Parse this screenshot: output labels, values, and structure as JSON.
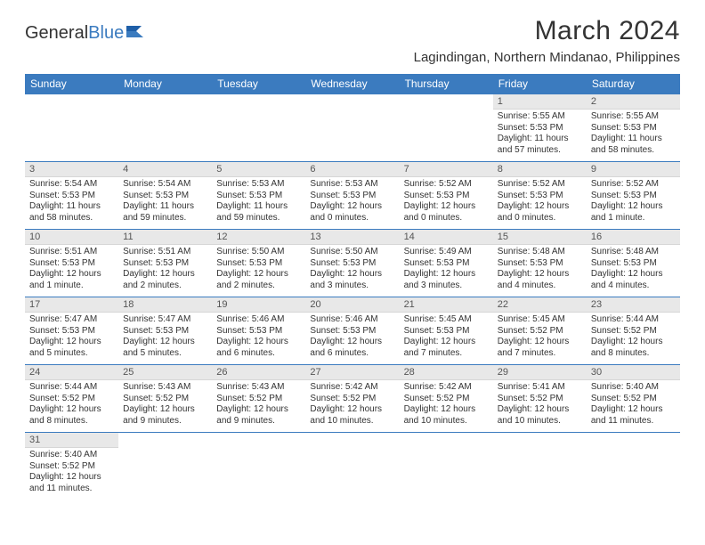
{
  "brand": {
    "part1": "General",
    "part2": "Blue"
  },
  "title": "March 2024",
  "location": "Lagindingan, Northern Mindanao, Philippines",
  "colors": {
    "header_bg": "#3b7bbf",
    "header_text": "#ffffff",
    "daynum_bg": "#e8e8e8",
    "border": "#3b7bbf",
    "text": "#333333"
  },
  "day_headers": [
    "Sunday",
    "Monday",
    "Tuesday",
    "Wednesday",
    "Thursday",
    "Friday",
    "Saturday"
  ],
  "weeks": [
    [
      {
        "n": "",
        "sr": "",
        "ss": "",
        "dl": ""
      },
      {
        "n": "",
        "sr": "",
        "ss": "",
        "dl": ""
      },
      {
        "n": "",
        "sr": "",
        "ss": "",
        "dl": ""
      },
      {
        "n": "",
        "sr": "",
        "ss": "",
        "dl": ""
      },
      {
        "n": "",
        "sr": "",
        "ss": "",
        "dl": ""
      },
      {
        "n": "1",
        "sr": "Sunrise: 5:55 AM",
        "ss": "Sunset: 5:53 PM",
        "dl": "Daylight: 11 hours and 57 minutes."
      },
      {
        "n": "2",
        "sr": "Sunrise: 5:55 AM",
        "ss": "Sunset: 5:53 PM",
        "dl": "Daylight: 11 hours and 58 minutes."
      }
    ],
    [
      {
        "n": "3",
        "sr": "Sunrise: 5:54 AM",
        "ss": "Sunset: 5:53 PM",
        "dl": "Daylight: 11 hours and 58 minutes."
      },
      {
        "n": "4",
        "sr": "Sunrise: 5:54 AM",
        "ss": "Sunset: 5:53 PM",
        "dl": "Daylight: 11 hours and 59 minutes."
      },
      {
        "n": "5",
        "sr": "Sunrise: 5:53 AM",
        "ss": "Sunset: 5:53 PM",
        "dl": "Daylight: 11 hours and 59 minutes."
      },
      {
        "n": "6",
        "sr": "Sunrise: 5:53 AM",
        "ss": "Sunset: 5:53 PM",
        "dl": "Daylight: 12 hours and 0 minutes."
      },
      {
        "n": "7",
        "sr": "Sunrise: 5:52 AM",
        "ss": "Sunset: 5:53 PM",
        "dl": "Daylight: 12 hours and 0 minutes."
      },
      {
        "n": "8",
        "sr": "Sunrise: 5:52 AM",
        "ss": "Sunset: 5:53 PM",
        "dl": "Daylight: 12 hours and 0 minutes."
      },
      {
        "n": "9",
        "sr": "Sunrise: 5:52 AM",
        "ss": "Sunset: 5:53 PM",
        "dl": "Daylight: 12 hours and 1 minute."
      }
    ],
    [
      {
        "n": "10",
        "sr": "Sunrise: 5:51 AM",
        "ss": "Sunset: 5:53 PM",
        "dl": "Daylight: 12 hours and 1 minute."
      },
      {
        "n": "11",
        "sr": "Sunrise: 5:51 AM",
        "ss": "Sunset: 5:53 PM",
        "dl": "Daylight: 12 hours and 2 minutes."
      },
      {
        "n": "12",
        "sr": "Sunrise: 5:50 AM",
        "ss": "Sunset: 5:53 PM",
        "dl": "Daylight: 12 hours and 2 minutes."
      },
      {
        "n": "13",
        "sr": "Sunrise: 5:50 AM",
        "ss": "Sunset: 5:53 PM",
        "dl": "Daylight: 12 hours and 3 minutes."
      },
      {
        "n": "14",
        "sr": "Sunrise: 5:49 AM",
        "ss": "Sunset: 5:53 PM",
        "dl": "Daylight: 12 hours and 3 minutes."
      },
      {
        "n": "15",
        "sr": "Sunrise: 5:48 AM",
        "ss": "Sunset: 5:53 PM",
        "dl": "Daylight: 12 hours and 4 minutes."
      },
      {
        "n": "16",
        "sr": "Sunrise: 5:48 AM",
        "ss": "Sunset: 5:53 PM",
        "dl": "Daylight: 12 hours and 4 minutes."
      }
    ],
    [
      {
        "n": "17",
        "sr": "Sunrise: 5:47 AM",
        "ss": "Sunset: 5:53 PM",
        "dl": "Daylight: 12 hours and 5 minutes."
      },
      {
        "n": "18",
        "sr": "Sunrise: 5:47 AM",
        "ss": "Sunset: 5:53 PM",
        "dl": "Daylight: 12 hours and 5 minutes."
      },
      {
        "n": "19",
        "sr": "Sunrise: 5:46 AM",
        "ss": "Sunset: 5:53 PM",
        "dl": "Daylight: 12 hours and 6 minutes."
      },
      {
        "n": "20",
        "sr": "Sunrise: 5:46 AM",
        "ss": "Sunset: 5:53 PM",
        "dl": "Daylight: 12 hours and 6 minutes."
      },
      {
        "n": "21",
        "sr": "Sunrise: 5:45 AM",
        "ss": "Sunset: 5:53 PM",
        "dl": "Daylight: 12 hours and 7 minutes."
      },
      {
        "n": "22",
        "sr": "Sunrise: 5:45 AM",
        "ss": "Sunset: 5:52 PM",
        "dl": "Daylight: 12 hours and 7 minutes."
      },
      {
        "n": "23",
        "sr": "Sunrise: 5:44 AM",
        "ss": "Sunset: 5:52 PM",
        "dl": "Daylight: 12 hours and 8 minutes."
      }
    ],
    [
      {
        "n": "24",
        "sr": "Sunrise: 5:44 AM",
        "ss": "Sunset: 5:52 PM",
        "dl": "Daylight: 12 hours and 8 minutes."
      },
      {
        "n": "25",
        "sr": "Sunrise: 5:43 AM",
        "ss": "Sunset: 5:52 PM",
        "dl": "Daylight: 12 hours and 9 minutes."
      },
      {
        "n": "26",
        "sr": "Sunrise: 5:43 AM",
        "ss": "Sunset: 5:52 PM",
        "dl": "Daylight: 12 hours and 9 minutes."
      },
      {
        "n": "27",
        "sr": "Sunrise: 5:42 AM",
        "ss": "Sunset: 5:52 PM",
        "dl": "Daylight: 12 hours and 10 minutes."
      },
      {
        "n": "28",
        "sr": "Sunrise: 5:42 AM",
        "ss": "Sunset: 5:52 PM",
        "dl": "Daylight: 12 hours and 10 minutes."
      },
      {
        "n": "29",
        "sr": "Sunrise: 5:41 AM",
        "ss": "Sunset: 5:52 PM",
        "dl": "Daylight: 12 hours and 10 minutes."
      },
      {
        "n": "30",
        "sr": "Sunrise: 5:40 AM",
        "ss": "Sunset: 5:52 PM",
        "dl": "Daylight: 12 hours and 11 minutes."
      }
    ],
    [
      {
        "n": "31",
        "sr": "Sunrise: 5:40 AM",
        "ss": "Sunset: 5:52 PM",
        "dl": "Daylight: 12 hours and 11 minutes."
      },
      {
        "n": "",
        "sr": "",
        "ss": "",
        "dl": ""
      },
      {
        "n": "",
        "sr": "",
        "ss": "",
        "dl": ""
      },
      {
        "n": "",
        "sr": "",
        "ss": "",
        "dl": ""
      },
      {
        "n": "",
        "sr": "",
        "ss": "",
        "dl": ""
      },
      {
        "n": "",
        "sr": "",
        "ss": "",
        "dl": ""
      },
      {
        "n": "",
        "sr": "",
        "ss": "",
        "dl": ""
      }
    ]
  ]
}
